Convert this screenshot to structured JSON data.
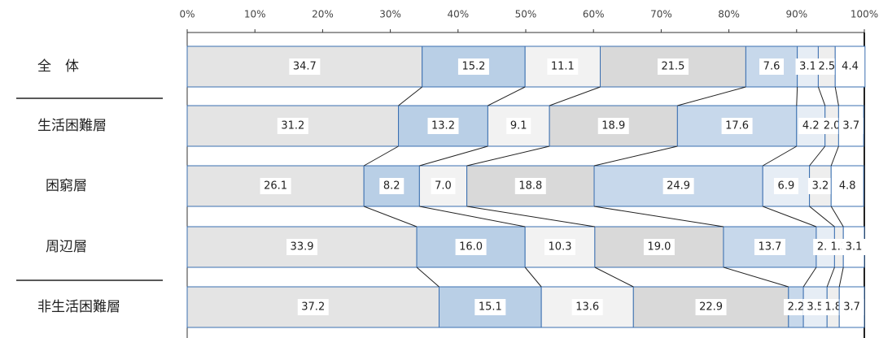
{
  "chart_data": {
    "type": "stacked-bar-100",
    "categories": [
      "全　体",
      "生活困難層",
      "困窮層",
      "周辺層",
      "非生活困難層"
    ],
    "series": [
      {
        "color": "#e4e4e4",
        "values": [
          34.7,
          31.2,
          26.1,
          33.9,
          37.2
        ],
        "value_labels": [
          "34.7",
          "31.2",
          "26.1",
          "33.9",
          "37.2"
        ]
      },
      {
        "color": "#b9cfe6",
        "values": [
          15.2,
          13.2,
          8.2,
          16.0,
          15.1
        ],
        "value_labels": [
          "15.2",
          "13.2",
          "8.2",
          "16.0",
          "15.1"
        ]
      },
      {
        "color": "#f2f2f2",
        "values": [
          11.1,
          9.1,
          7.0,
          10.3,
          13.6
        ],
        "value_labels": [
          "11.1",
          "9.1",
          "7.0",
          "10.3",
          "13.6"
        ]
      },
      {
        "color": "#d9d9d9",
        "values": [
          21.5,
          18.9,
          18.8,
          19.0,
          22.9
        ],
        "value_labels": [
          "21.5",
          "18.9",
          "18.8",
          "19.0",
          "22.9"
        ]
      },
      {
        "color": "#c7d8eb",
        "values": [
          7.6,
          17.6,
          24.9,
          13.7,
          2.2
        ],
        "value_labels": [
          "7.6",
          "17.6",
          "24.9",
          "13.7",
          "2.2"
        ]
      },
      {
        "color": "#e6edf5",
        "values": [
          3.1,
          4.2,
          6.9,
          2.7,
          3.5
        ],
        "value_labels": [
          "3.1",
          "4.2",
          "6.9",
          "2.7",
          "3.5"
        ]
      },
      {
        "color": "#eeeeee",
        "values": [
          2.5,
          2.0,
          3.2,
          1.3,
          1.8
        ],
        "value_labels": [
          "2.5",
          "2.0",
          "3.2",
          "1.3",
          "1.8"
        ]
      },
      {
        "color": "#ffffff",
        "values": [
          4.4,
          3.7,
          4.8,
          3.1,
          3.7
        ],
        "value_labels": [
          "4.4",
          "3.7",
          "4.8",
          "3.1",
          "3.7"
        ]
      }
    ],
    "xlim": [
      0,
      100
    ],
    "xticks": [
      {
        "value": 0,
        "label": "0%"
      },
      {
        "value": 10,
        "label": "10%"
      },
      {
        "value": 20,
        "label": "20%"
      },
      {
        "value": 30,
        "label": "30%"
      },
      {
        "value": 40,
        "label": "40%"
      },
      {
        "value": 50,
        "label": "50%"
      },
      {
        "value": 60,
        "label": "60%"
      },
      {
        "value": 70,
        "label": "70%"
      },
      {
        "value": 80,
        "label": "80%"
      },
      {
        "value": 90,
        "label": "90%"
      },
      {
        "value": 100,
        "label": "100%"
      }
    ]
  }
}
